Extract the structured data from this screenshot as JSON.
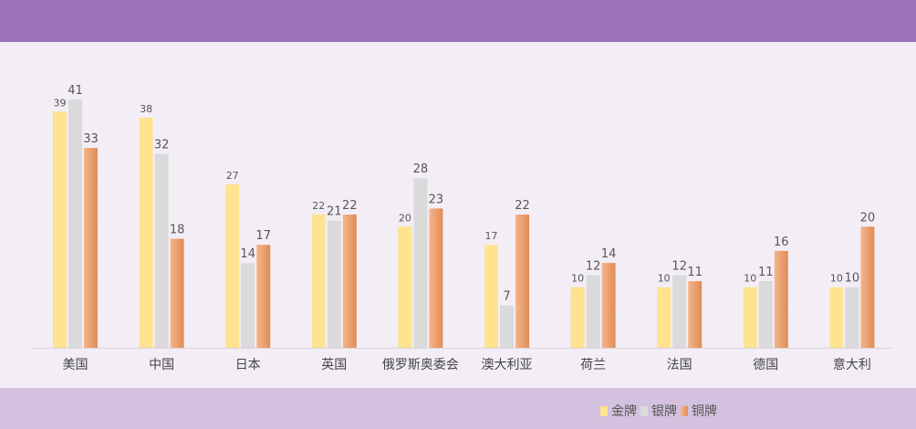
{
  "colors": {
    "top_band": "#9b72b9",
    "bottom_band": "#d4c1df",
    "plot_bg": "#f3eef6",
    "gold": "#ffe38e",
    "silver": "#dadada",
    "bronze_light": "#f4b58c",
    "bronze_dark": "#e08c54",
    "axis": "#d9d2dc",
    "label_text": "#555555"
  },
  "chart_data": {
    "type": "bar",
    "categories": [
      "美国",
      "中国",
      "日本",
      "英国",
      "俄罗斯奥委会",
      "澳大利亚",
      "荷兰",
      "法国",
      "德国",
      "意大利"
    ],
    "series": [
      {
        "name": "金牌",
        "color": "#ffe38e",
        "values": [
          39,
          38,
          27,
          22,
          20,
          17,
          10,
          10,
          10,
          10
        ]
      },
      {
        "name": "银牌",
        "color": "#dadada",
        "values": [
          41,
          32,
          14,
          21,
          28,
          7,
          12,
          12,
          11,
          10
        ]
      },
      {
        "name": "铜牌",
        "color": "#e8975e",
        "values": [
          33,
          18,
          17,
          22,
          23,
          22,
          14,
          11,
          16,
          20
        ]
      }
    ],
    "ylim": [
      0,
      41
    ],
    "grid": false,
    "legend_position": "bottom-right",
    "data_labels": true
  }
}
